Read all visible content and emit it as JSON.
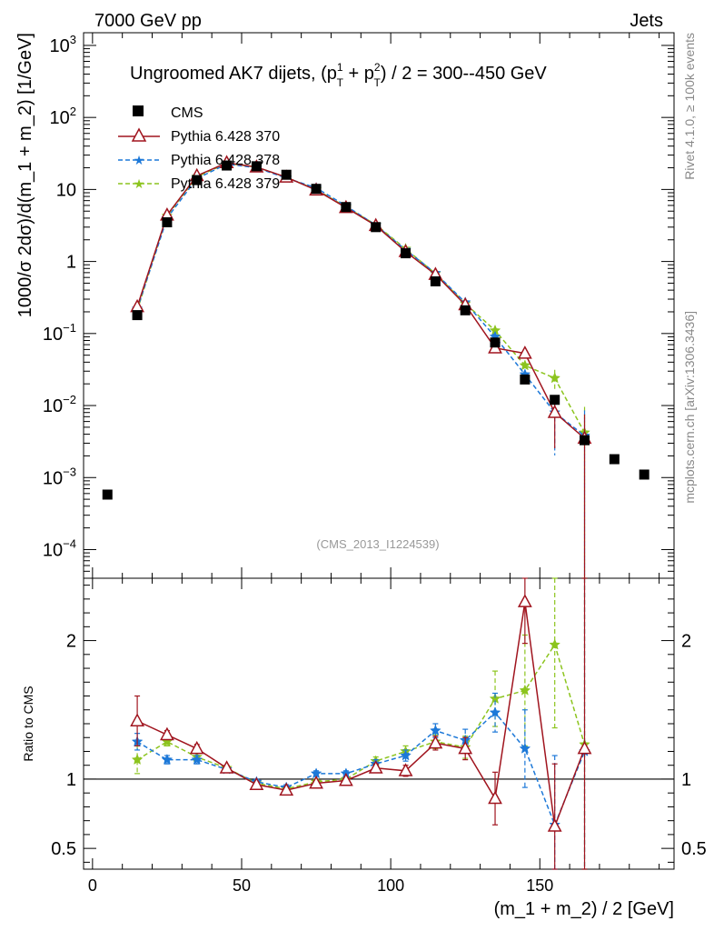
{
  "header": {
    "left": "7000 GeV pp",
    "right": "Jets"
  },
  "title_text": "Ungroomed AK7 dijets, (p_T^1 + p_T^2) / 2 = 300--450 GeV",
  "title_parts": {
    "prefix": "Ungroomed AK7 dijets, (p",
    "t1_sup": "1",
    "t1_sub": "T",
    "plus": " + p",
    "t2_sup": "2",
    "t2_sub": "T",
    "suffix": ") / 2 = 300--450 GeV"
  },
  "side": {
    "rivet": "Rivet 4.1.0, ≥ 100k events",
    "mcplots": "mcplots.cern.ch [arXiv:1306.3436]"
  },
  "analysis_id": "(CMS_2013_I1224539)",
  "colors": {
    "cms": "#000000",
    "p370": "#a0141e",
    "p378": "#1c78d8",
    "p379": "#8cc41e"
  },
  "chart_data": {
    "type": "scatter",
    "xlabel": "(m_1 + m_2) / 2 [GeV]",
    "ylabel": "1000/σ  2dσ)/d(m_1 + m_2) [1/GeV]",
    "ratio_ylabel": "Ratio to CMS",
    "xlim": [
      -3,
      195
    ],
    "ylim": [
      4e-05,
      1500
    ],
    "ratio_ylim": [
      0.35,
      2.45
    ],
    "xticks": [
      0,
      50,
      100,
      150
    ],
    "xtick_labels": [
      "0",
      "50",
      "100",
      "150"
    ],
    "yticks": [
      {
        "value": 0.0001,
        "mant": "10",
        "exp": "−4"
      },
      {
        "value": 0.001,
        "mant": "10",
        "exp": "−3"
      },
      {
        "value": 0.01,
        "mant": "10",
        "exp": "−2"
      },
      {
        "value": 0.1,
        "mant": "10",
        "exp": "−1"
      },
      {
        "value": 1,
        "mant": "1",
        "exp": ""
      },
      {
        "value": 10,
        "mant": "10",
        "exp": ""
      },
      {
        "value": 100,
        "mant": "10",
        "exp": "2"
      },
      {
        "value": 1000,
        "mant": "10",
        "exp": "3"
      }
    ],
    "ratio_ticks": [
      {
        "value": 0.5,
        "label": "0.5"
      },
      {
        "value": 1,
        "label": "1"
      },
      {
        "value": 2,
        "label": "2"
      }
    ],
    "x": [
      5,
      15,
      25,
      35,
      45,
      55,
      65,
      75,
      85,
      95,
      105,
      115,
      125,
      135,
      145,
      155,
      165,
      175,
      185
    ],
    "data": {
      "name": "CMS",
      "x": [
        5,
        15,
        25,
        35,
        45,
        55,
        65,
        75,
        85,
        95,
        105,
        115,
        125,
        135,
        145,
        155,
        165,
        175,
        185
      ],
      "values": [
        0.00058,
        0.18,
        3.5,
        13.5,
        21.5,
        21,
        16,
        10.2,
        5.7,
        3.0,
        1.3,
        0.53,
        0.21,
        0.075,
        0.023,
        0.012,
        0.0033,
        0.0018,
        0.0011
      ]
    },
    "series": [
      {
        "name": "Pythia 6.428 370",
        "color": "#a0141e",
        "marker": "triangle",
        "dash": "",
        "x": [
          15,
          25,
          35,
          45,
          55,
          65,
          75,
          85,
          95,
          105,
          115,
          125,
          135,
          145,
          155,
          165
        ],
        "values": [
          0.235,
          4.4,
          15.5,
          23.5,
          20.5,
          14.8,
          9.8,
          5.6,
          3.15,
          1.37,
          0.66,
          0.25,
          0.063,
          0.053,
          0.008,
          0.0035
        ],
        "ratio": [
          1.42,
          1.32,
          1.22,
          1.08,
          0.96,
          0.92,
          0.97,
          0.99,
          1.08,
          1.06,
          1.26,
          1.22,
          0.86,
          2.28,
          0.66,
          1.22
        ],
        "ratio_err": [
          0.18,
          0.03,
          0.03,
          0.02,
          0.02,
          0.02,
          0.02,
          0.02,
          0.03,
          0.04,
          0.05,
          0.08,
          0.19,
          0.3,
          0.45,
          1.4
        ]
      },
      {
        "name": "Pythia 6.428 378",
        "color": "#1c78d8",
        "marker": "star",
        "dash": "5,3",
        "x": [
          15,
          25,
          35,
          45,
          55,
          65,
          75,
          85,
          95,
          105,
          115,
          125,
          135,
          145,
          155,
          165
        ],
        "values": [
          0.22,
          4.0,
          14.2,
          22.5,
          20.0,
          14.4,
          10.5,
          5.9,
          3.2,
          1.45,
          0.69,
          0.27,
          0.09,
          0.027,
          0.008,
          0.0038
        ],
        "ratio": [
          1.27,
          1.14,
          1.14,
          1.07,
          0.98,
          0.94,
          1.04,
          1.04,
          1.11,
          1.17,
          1.35,
          1.28,
          1.48,
          1.22,
          0.67,
          1.2
        ],
        "ratio_err": [
          0.06,
          0.03,
          0.03,
          0.02,
          0.02,
          0.02,
          0.02,
          0.02,
          0.03,
          0.04,
          0.05,
          0.08,
          0.14,
          0.28,
          0.5,
          1.5
        ]
      },
      {
        "name": "Pythia 6.428 379",
        "color": "#8cc41e",
        "marker": "star",
        "dash": "5,3",
        "x": [
          15,
          25,
          35,
          45,
          55,
          65,
          75,
          85,
          95,
          105,
          115,
          125,
          135,
          145,
          155,
          165
        ],
        "values": [
          0.21,
          4.3,
          15.0,
          23.0,
          20.5,
          14.7,
          10.0,
          5.7,
          3.25,
          1.5,
          0.68,
          0.26,
          0.11,
          0.036,
          0.024,
          0.0042
        ],
        "ratio": [
          1.14,
          1.27,
          1.16,
          1.08,
          0.97,
          0.93,
          0.98,
          1.0,
          1.13,
          1.2,
          1.27,
          1.23,
          1.58,
          1.64,
          1.97,
          1.25
        ],
        "ratio_err": [
          0.1,
          0.03,
          0.03,
          0.02,
          0.02,
          0.02,
          0.02,
          0.02,
          0.03,
          0.04,
          0.05,
          0.08,
          0.2,
          0.4,
          0.6,
          1.6
        ]
      }
    ]
  }
}
